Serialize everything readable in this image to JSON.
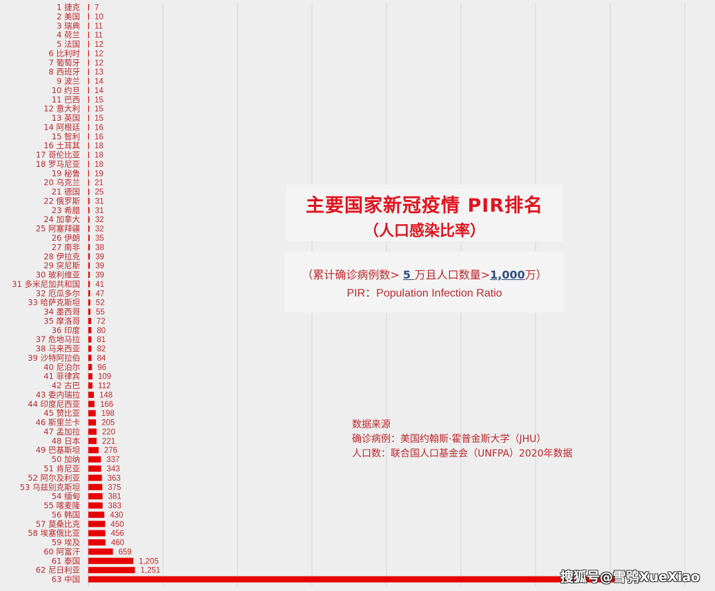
{
  "chart_data": {
    "type": "bar",
    "orientation": "horizontal",
    "title": "主要国家新冠疫情 PIR排名",
    "subtitle": "（人口感染比率）",
    "categories": [
      "1 捷克",
      "2 美国",
      "3 瑞典",
      "4 荷兰",
      "5 法国",
      "6 比利时",
      "7 葡萄牙",
      "8 西班牙",
      "9 波兰",
      "10 约旦",
      "11 巴西",
      "12 意大利",
      "13 英国",
      "14 阿根廷",
      "15 智利",
      "16 土耳其",
      "17 哥伦比亚",
      "18 罗马尼亚",
      "19 秘鲁",
      "20 乌克兰",
      "21 德国",
      "22 俄罗斯",
      "23 希腊",
      "24 加拿大",
      "25 阿塞拜疆",
      "26 伊朗",
      "27 南非",
      "28 伊拉克",
      "29 突尼斯",
      "30 玻利维亚",
      "31 多米尼加共和国",
      "32 厄瓜多尔",
      "33 哈萨克斯坦",
      "34 墨西哥",
      "35 摩洛哥",
      "36 印度",
      "37 危地马拉",
      "38 马来西亚",
      "39 沙特阿拉伯",
      "40 尼泊尔",
      "41 菲律宾",
      "42 古巴",
      "43 委内瑞拉",
      "44 印度尼西亚",
      "45 赞比亚",
      "46 斯里兰卡",
      "47 孟加拉",
      "48 日本",
      "49 巴基斯坦",
      "50 加纳",
      "51 肯尼亚",
      "52 阿尔及利亚",
      "53 乌兹别克斯坦",
      "54 缅甸",
      "55 喀麦隆",
      "56 韩国",
      "57 莫桑比克",
      "58 埃塞俄比亚",
      "59 埃及",
      "60 阿富汗",
      "61 泰国",
      "62 尼日利亚",
      "63 中国"
    ],
    "values": [
      7,
      10,
      11,
      11,
      12,
      12,
      12,
      13,
      14,
      14,
      15,
      15,
      15,
      16,
      16,
      18,
      18,
      18,
      19,
      21,
      25,
      31,
      31,
      32,
      32,
      35,
      38,
      39,
      39,
      39,
      41,
      47,
      52,
      55,
      72,
      80,
      81,
      82,
      84,
      96,
      109,
      112,
      148,
      166,
      198,
      205,
      220,
      221,
      276,
      337,
      343,
      363,
      375,
      381,
      383,
      430,
      450,
      456,
      460,
      659,
      1205,
      1251,
      14200
    ],
    "value_labels": [
      "7",
      "10",
      "11",
      "11",
      "12",
      "12",
      "12",
      "13",
      "14",
      "14",
      "15",
      "15",
      "15",
      "16",
      "16",
      "18",
      "18",
      "18",
      "19",
      "21",
      "25",
      "31",
      "31",
      "32",
      "32",
      "35",
      "38",
      "39",
      "39",
      "39",
      "41",
      "47",
      "52",
      "55",
      "72",
      "80",
      "81",
      "82",
      "84",
      "96",
      "109",
      "112",
      "148",
      "166",
      "198",
      "205",
      "220",
      "221",
      "276",
      "337",
      "343",
      "363",
      "375",
      "381",
      "383",
      "430",
      "450",
      "456",
      "460",
      "659",
      "1,205",
      "1,251",
      ""
    ],
    "xlim": [
      0,
      16000
    ],
    "grid_step": 2000,
    "grid": true,
    "bar_color": "#e60000",
    "text_color": "#c0282d"
  },
  "criteria": {
    "prefix": "（累计确诊病例数> ",
    "cases": "5 ",
    "middle": "万且人口数量>",
    "population": "1,000",
    "suffix": "万）",
    "pir": "PIR：Population Infection Ratio"
  },
  "source": {
    "heading": "数据来源",
    "cases": "确诊病例：美国约翰斯·霍普金斯大学（JHU）",
    "population": "人口数：联合国人口基金会（UNFPA）2020年数据"
  },
  "watermark": "搜狐号@雪鸮XueXiao"
}
